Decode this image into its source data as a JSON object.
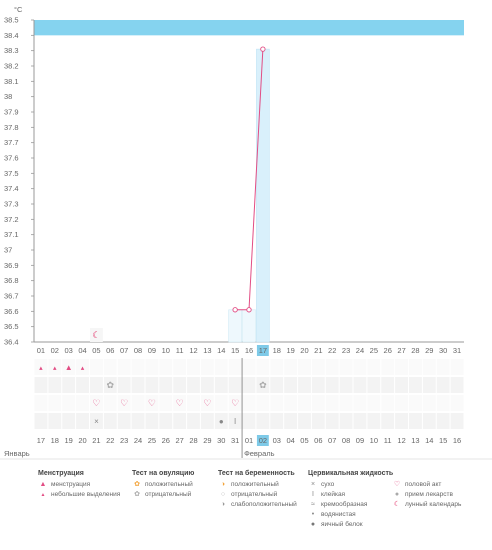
{
  "chart_data": {
    "type": "line",
    "unit_label": "°C",
    "ylim": [
      36.4,
      38.5
    ],
    "y_ticks": [
      "36.4",
      "36.5",
      "36.6",
      "36.7",
      "36.8",
      "36.9",
      "37",
      "37.1",
      "37.2",
      "37.3",
      "37.4",
      "37.5",
      "37.6",
      "37.7",
      "37.8",
      "37.9",
      "38",
      "38.1",
      "38.2",
      "38.3",
      "38.4",
      "38.5"
    ],
    "cycle_days": [
      "01",
      "02",
      "03",
      "04",
      "05",
      "06",
      "07",
      "08",
      "09",
      "10",
      "11",
      "12",
      "13",
      "14",
      "15",
      "16",
      "17",
      "18",
      "19",
      "20",
      "21",
      "22",
      "23",
      "24",
      "25",
      "26",
      "27",
      "28",
      "29",
      "30",
      "31"
    ],
    "current_day_index": 16,
    "dates": [
      "17",
      "18",
      "19",
      "20",
      "21",
      "22",
      "23",
      "24",
      "25",
      "26",
      "27",
      "28",
      "29",
      "30",
      "31",
      "01",
      "02",
      "03",
      "04",
      "05",
      "06",
      "07",
      "08",
      "09",
      "10",
      "11",
      "12",
      "13",
      "14",
      "15",
      "16"
    ],
    "weekend_date_indices": [
      4,
      5,
      11,
      12,
      18,
      19,
      25,
      26
    ],
    "month_labels": [
      {
        "text": "Январь",
        "day_index": 0
      },
      {
        "text": "Февраль",
        "day_index": 15
      }
    ],
    "series": [
      {
        "values": [
          {
            "day_index": 14,
            "y": 36.61
          },
          {
            "day_index": 15,
            "y": 36.61
          },
          {
            "day_index": 16,
            "y": 38.31
          }
        ]
      }
    ],
    "colors": {
      "top_band": "#85d3ef",
      "plot_bg": "#ffffff",
      "line": "#e24d84",
      "current_column": "#d9f0fb",
      "current_day_label_bg": "#7ecae8",
      "weekend_text": "#e0245e"
    },
    "markers": {
      "menstruation": [
        {
          "day_index": 0,
          "icon": "drop-small-icon"
        },
        {
          "day_index": 1,
          "icon": "drop-small-icon"
        },
        {
          "day_index": 2,
          "icon": "drop-large-icon"
        },
        {
          "day_index": 3,
          "icon": "drop-small-icon"
        }
      ],
      "ovulation_test": [
        {
          "day_index": 5,
          "icon": "ovulation-negative-icon"
        },
        {
          "day_index": 16,
          "icon": "ovulation-negative-icon"
        }
      ],
      "intercourse": [
        {
          "day_index": 4,
          "icon": "heart-icon"
        },
        {
          "day_index": 6,
          "icon": "heart-icon"
        },
        {
          "day_index": 8,
          "icon": "heart-icon"
        },
        {
          "day_index": 10,
          "icon": "heart-icon"
        },
        {
          "day_index": 12,
          "icon": "heart-icon"
        },
        {
          "day_index": 14,
          "icon": "heart-icon"
        }
      ],
      "cervical_fluid": [
        {
          "day_index": 4,
          "icon": "cross-icon"
        },
        {
          "day_index": 13,
          "icon": "drop-gray-icon"
        },
        {
          "day_index": 14,
          "icon": "sticky-icon"
        }
      ],
      "lunar": [
        {
          "day_index": 4,
          "icon": "lunar-calendar-icon"
        }
      ]
    }
  },
  "legend": {
    "menstruation": {
      "title": "Менструация",
      "items": [
        {
          "icon": "drop-large-icon",
          "label": "менструация"
        },
        {
          "icon": "drop-small-icon",
          "label": "небольшие выделения"
        }
      ]
    },
    "ovulation_test": {
      "title": "Тест на овуляцию",
      "items": [
        {
          "icon": "ovulation-positive-icon",
          "label": "положительный"
        },
        {
          "icon": "ovulation-negative-icon",
          "label": "отрицательный"
        }
      ]
    },
    "pregnancy_test": {
      "title": "Тест на беременность",
      "items": [
        {
          "icon": "pregnancy-positive-icon",
          "label": "положительный"
        },
        {
          "icon": "pregnancy-negative-icon",
          "label": "отрицательный"
        },
        {
          "icon": "pregnancy-weak-icon",
          "label": "слабоположительный"
        }
      ]
    },
    "cervical_fluid": {
      "title": "Цервикальная жидкость",
      "items": [
        {
          "icon": "cross-icon",
          "label": "сухо"
        },
        {
          "icon": "sticky-icon",
          "label": "клейкая"
        },
        {
          "icon": "creamy-icon",
          "label": "кремообразная"
        },
        {
          "icon": "watery-icon",
          "label": "водянистая"
        },
        {
          "icon": "drop-gray-icon",
          "label": "яичный белок"
        }
      ]
    },
    "other": {
      "items": [
        {
          "icon": "heart-icon",
          "label": "половой акт"
        },
        {
          "icon": "pill-icon",
          "label": "прием лекарств"
        },
        {
          "icon": "lunar-calendar-icon",
          "label": "лунный календарь"
        }
      ]
    }
  }
}
